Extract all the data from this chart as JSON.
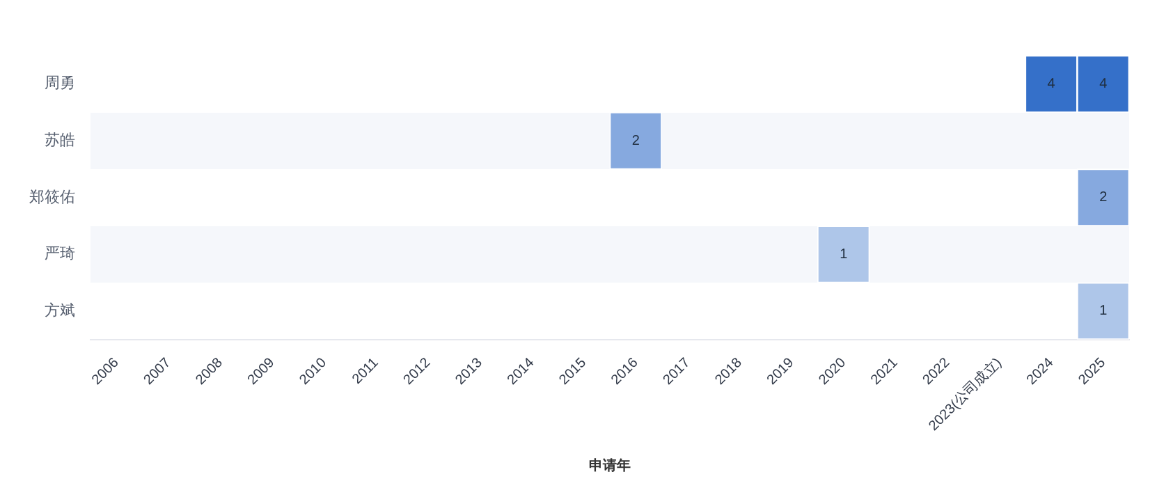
{
  "chart_data": {
    "type": "heatmap",
    "xlabel": "申请年",
    "categories": [
      "2006",
      "2007",
      "2008",
      "2009",
      "2010",
      "2011",
      "2012",
      "2013",
      "2014",
      "2015",
      "2016",
      "2017",
      "2018",
      "2019",
      "2020",
      "2021",
      "2022",
      "2023(公司成立)",
      "2024",
      "2025"
    ],
    "y_categories": [
      "周勇",
      "苏皓",
      "郑筱佑",
      "严琦",
      "方斌"
    ],
    "cells": [
      [
        null,
        null,
        null,
        null,
        null,
        null,
        null,
        null,
        null,
        null,
        null,
        null,
        null,
        null,
        null,
        null,
        null,
        null,
        4,
        4
      ],
      [
        null,
        null,
        null,
        null,
        null,
        null,
        null,
        null,
        null,
        null,
        2,
        null,
        null,
        null,
        null,
        null,
        null,
        null,
        null,
        null
      ],
      [
        null,
        null,
        null,
        null,
        null,
        null,
        null,
        null,
        null,
        null,
        null,
        null,
        null,
        null,
        null,
        null,
        null,
        null,
        null,
        2
      ],
      [
        null,
        null,
        null,
        null,
        null,
        null,
        null,
        null,
        null,
        null,
        null,
        null,
        null,
        null,
        1,
        null,
        null,
        null,
        null,
        null
      ],
      [
        null,
        null,
        null,
        null,
        null,
        null,
        null,
        null,
        null,
        null,
        null,
        null,
        null,
        null,
        null,
        null,
        null,
        null,
        null,
        1
      ]
    ],
    "color": "#3570c9",
    "data_labels": true
  }
}
